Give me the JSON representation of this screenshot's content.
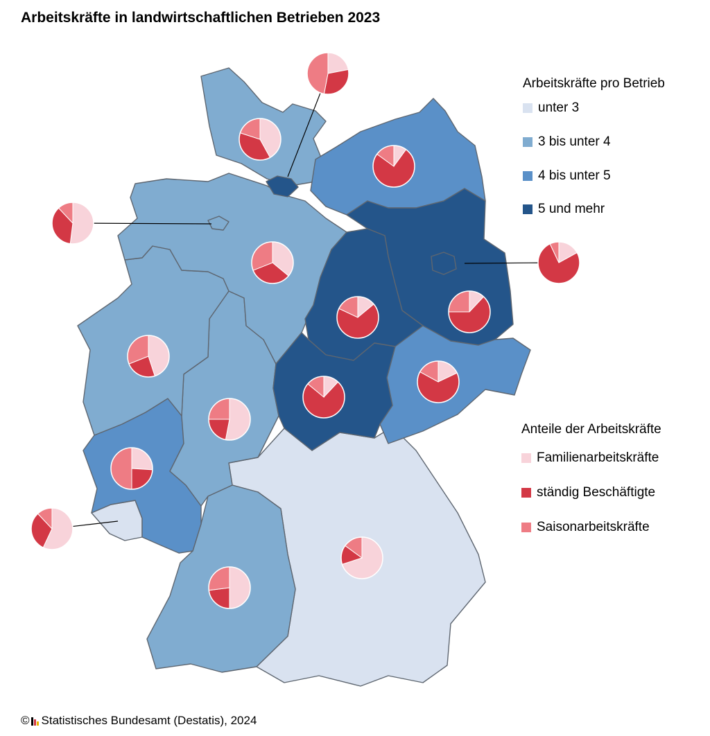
{
  "title": "Arbeitskräfte in landwirtschaftlichen Betrieben 2023",
  "legend_density": {
    "heading": "Arbeitskräfte pro Betrieb",
    "items": [
      {
        "label": "unter 3",
        "color": "#d9e2f0"
      },
      {
        "label": "3 bis unter 4",
        "color": "#80acd0"
      },
      {
        "label": "4 bis unter 5",
        "color": "#5a90c8"
      },
      {
        "label": "5 und mehr",
        "color": "#24558a"
      }
    ]
  },
  "legend_shares": {
    "heading": "Anteile der Arbeitskräfte",
    "items": [
      {
        "label": "Familienarbeitskräfte",
        "color": "#f8d3da"
      },
      {
        "label": "ständig Beschäftigte",
        "color": "#d33845"
      },
      {
        "label": "Saisonarbeitskräfte",
        "color": "#ee7c84"
      }
    ]
  },
  "source": {
    "copyright": "©",
    "text": "Statistisches Bundesamt (Destatis), 2024",
    "logo_colors": [
      "#000000",
      "#d33845",
      "#e8b400"
    ]
  },
  "chart_data": {
    "type": "map-pie",
    "states": [
      {
        "name": "Schleswig-Holstein",
        "category": "3 bis unter 4",
        "shares": {
          "familie": 0.42,
          "staendig": 0.38,
          "saison": 0.2
        }
      },
      {
        "name": "Hamburg",
        "category": "5 und mehr",
        "shares": {
          "familie": 0.22,
          "staendig": 0.31,
          "saison": 0.47
        }
      },
      {
        "name": "Mecklenburg-Vorpommern",
        "category": "4 bis unter 5",
        "shares": {
          "familie": 0.1,
          "staendig": 0.75,
          "saison": 0.15
        }
      },
      {
        "name": "Bremen",
        "category": "3 bis unter 4",
        "shares": {
          "familie": 0.52,
          "staendig": 0.36,
          "saison": 0.12
        }
      },
      {
        "name": "Niedersachsen",
        "category": "3 bis unter 4",
        "shares": {
          "familie": 0.36,
          "staendig": 0.33,
          "saison": 0.31
        }
      },
      {
        "name": "Berlin",
        "category": "5 und mehr",
        "shares": {
          "familie": 0.17,
          "staendig": 0.76,
          "saison": 0.07
        }
      },
      {
        "name": "Brandenburg",
        "category": "5 und mehr",
        "shares": {
          "familie": 0.12,
          "staendig": 0.63,
          "saison": 0.25
        }
      },
      {
        "name": "Sachsen-Anhalt",
        "category": "5 und mehr",
        "shares": {
          "familie": 0.14,
          "staendig": 0.68,
          "saison": 0.18
        }
      },
      {
        "name": "Nordrhein-Westfalen",
        "category": "3 bis unter 4",
        "shares": {
          "familie": 0.45,
          "staendig": 0.24,
          "saison": 0.31
        }
      },
      {
        "name": "Sachsen",
        "category": "4 bis unter 5",
        "shares": {
          "familie": 0.18,
          "staendig": 0.65,
          "saison": 0.17
        }
      },
      {
        "name": "Thüringen",
        "category": "5 und mehr",
        "shares": {
          "familie": 0.12,
          "staendig": 0.74,
          "saison": 0.14
        }
      },
      {
        "name": "Hessen",
        "category": "3 bis unter 4",
        "shares": {
          "familie": 0.53,
          "staendig": 0.22,
          "saison": 0.25
        }
      },
      {
        "name": "Rheinland-Pfalz",
        "category": "4 bis unter 5",
        "shares": {
          "familie": 0.26,
          "staendig": 0.24,
          "saison": 0.5
        }
      },
      {
        "name": "Saarland",
        "category": "unter 3",
        "shares": {
          "familie": 0.57,
          "staendig": 0.31,
          "saison": 0.12
        }
      },
      {
        "name": "Baden-Württemberg",
        "category": "3 bis unter 4",
        "shares": {
          "familie": 0.5,
          "staendig": 0.23,
          "saison": 0.27
        }
      },
      {
        "name": "Bayern",
        "category": "unter 3",
        "shares": {
          "familie": 0.7,
          "staendig": 0.15,
          "saison": 0.15
        }
      }
    ]
  }
}
